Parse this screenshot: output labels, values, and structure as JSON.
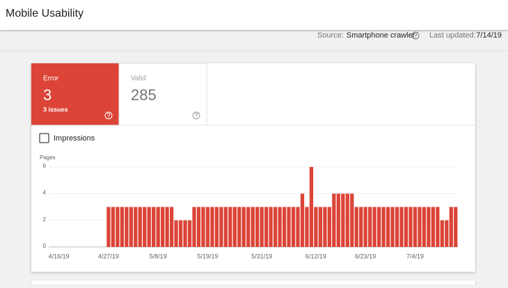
{
  "header": {
    "title": "Mobile Usability"
  },
  "info": {
    "source_label": "Source:",
    "source_value": "Smartphone crawler",
    "updated_label": "Last updated:",
    "updated_value": "7/14/19"
  },
  "tiles": {
    "error": {
      "label": "Error",
      "value": "3",
      "sub": "3 issues"
    },
    "valid": {
      "label": "Valid",
      "value": "285"
    }
  },
  "impressions": "Impressions",
  "chart_data": {
    "type": "bar",
    "y_label": "Pages",
    "color": "#db4437",
    "grid": true,
    "ylim": [
      0,
      6
    ],
    "yticks": [
      0,
      2,
      4,
      6
    ],
    "categories": [
      null,
      null,
      null,
      "4/16/19",
      null,
      null,
      null,
      null,
      null,
      null,
      null,
      null,
      null,
      null,
      "4/27/19",
      null,
      null,
      null,
      null,
      null,
      null,
      null,
      null,
      null,
      null,
      "5/8/19",
      null,
      null,
      null,
      null,
      null,
      null,
      null,
      null,
      null,
      null,
      "5/19/19",
      null,
      null,
      null,
      null,
      null,
      null,
      null,
      null,
      null,
      null,
      null,
      "5/31/19",
      null,
      null,
      null,
      null,
      null,
      null,
      null,
      null,
      null,
      null,
      null,
      "6/12/19",
      null,
      null,
      null,
      null,
      null,
      null,
      null,
      null,
      null,
      null,
      "6/23/19",
      null,
      null,
      null,
      null,
      null,
      null,
      null,
      null,
      null,
      null,
      "7/4/19",
      null,
      null,
      null,
      null,
      null,
      null,
      null,
      null,
      null
    ],
    "values": [
      0,
      0,
      0,
      0,
      0,
      0,
      0,
      0,
      0,
      0,
      0,
      0,
      0,
      0,
      3,
      3,
      3,
      3,
      3,
      3,
      3,
      3,
      3,
      3,
      3,
      3,
      3,
      3,
      3,
      2,
      2,
      2,
      2,
      3,
      3,
      3,
      3,
      3,
      3,
      3,
      3,
      3,
      3,
      3,
      3,
      3,
      3,
      3,
      3,
      3,
      3,
      3,
      3,
      3,
      3,
      3,
      3,
      4,
      3,
      6,
      3,
      3,
      3,
      3,
      4,
      4,
      4,
      4,
      4,
      3,
      3,
      3,
      3,
      3,
      3,
      3,
      3,
      3,
      3,
      3,
      3,
      3,
      3,
      3,
      3,
      3,
      3,
      3,
      2,
      2,
      3,
      3
    ]
  }
}
